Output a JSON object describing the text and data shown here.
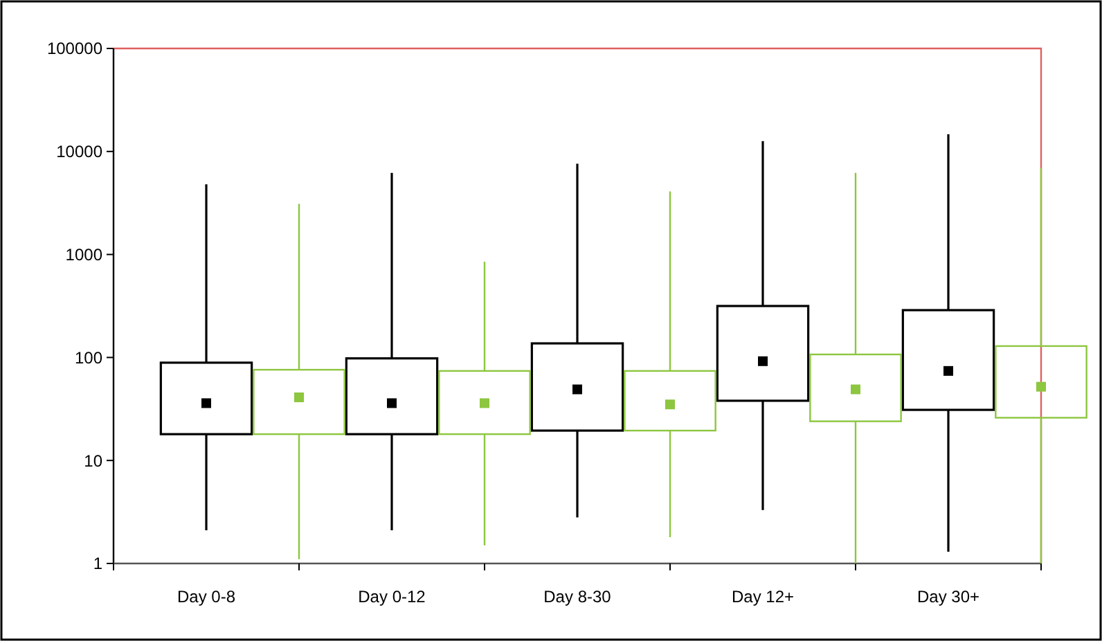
{
  "chart_data": {
    "type": "box",
    "categories": [
      "Day 0-8",
      null,
      "Day 0-12",
      null,
      "Day 8-30",
      null,
      "Day 12+",
      null,
      "Day 30+",
      null
    ],
    "log": true,
    "ylim": [
      1,
      100000
    ],
    "yticks": [
      1,
      10,
      100,
      1000,
      10000,
      100000
    ],
    "series": [
      {
        "color": "#000000",
        "boxes": [
          {
            "low": 2.1,
            "q1": 18,
            "median": 36,
            "q3": 89,
            "high": 4800
          },
          null,
          {
            "low": 2.1,
            "q1": 18,
            "median": 36,
            "q3": 98,
            "high": 6200
          },
          null,
          {
            "low": 2.8,
            "q1": 19.5,
            "median": 49,
            "q3": 137,
            "high": 7600
          },
          null,
          {
            "low": 3.3,
            "q1": 38,
            "median": 92,
            "q3": 316,
            "high": 12600
          },
          null,
          {
            "low": 1.3,
            "q1": 31,
            "median": 74,
            "q3": 288,
            "high": 14700
          },
          null
        ]
      },
      {
        "color": "#8dc63f",
        "boxes": [
          null,
          {
            "low": 1.1,
            "q1": 18,
            "median": 41,
            "q3": 76,
            "high": 3100
          },
          null,
          {
            "low": 1.5,
            "q1": 18,
            "median": 36,
            "q3": 74,
            "high": 850
          },
          null,
          {
            "low": 1.8,
            "q1": 19.5,
            "median": 35,
            "q3": 74,
            "high": 4100
          },
          null,
          {
            "low": 1,
            "q1": 24,
            "median": 49,
            "q3": 107,
            "high": 6200
          },
          null,
          {
            "low": 1,
            "q1": 26,
            "median": 52,
            "q3": 129,
            "high": 6900
          }
        ]
      }
    ]
  }
}
